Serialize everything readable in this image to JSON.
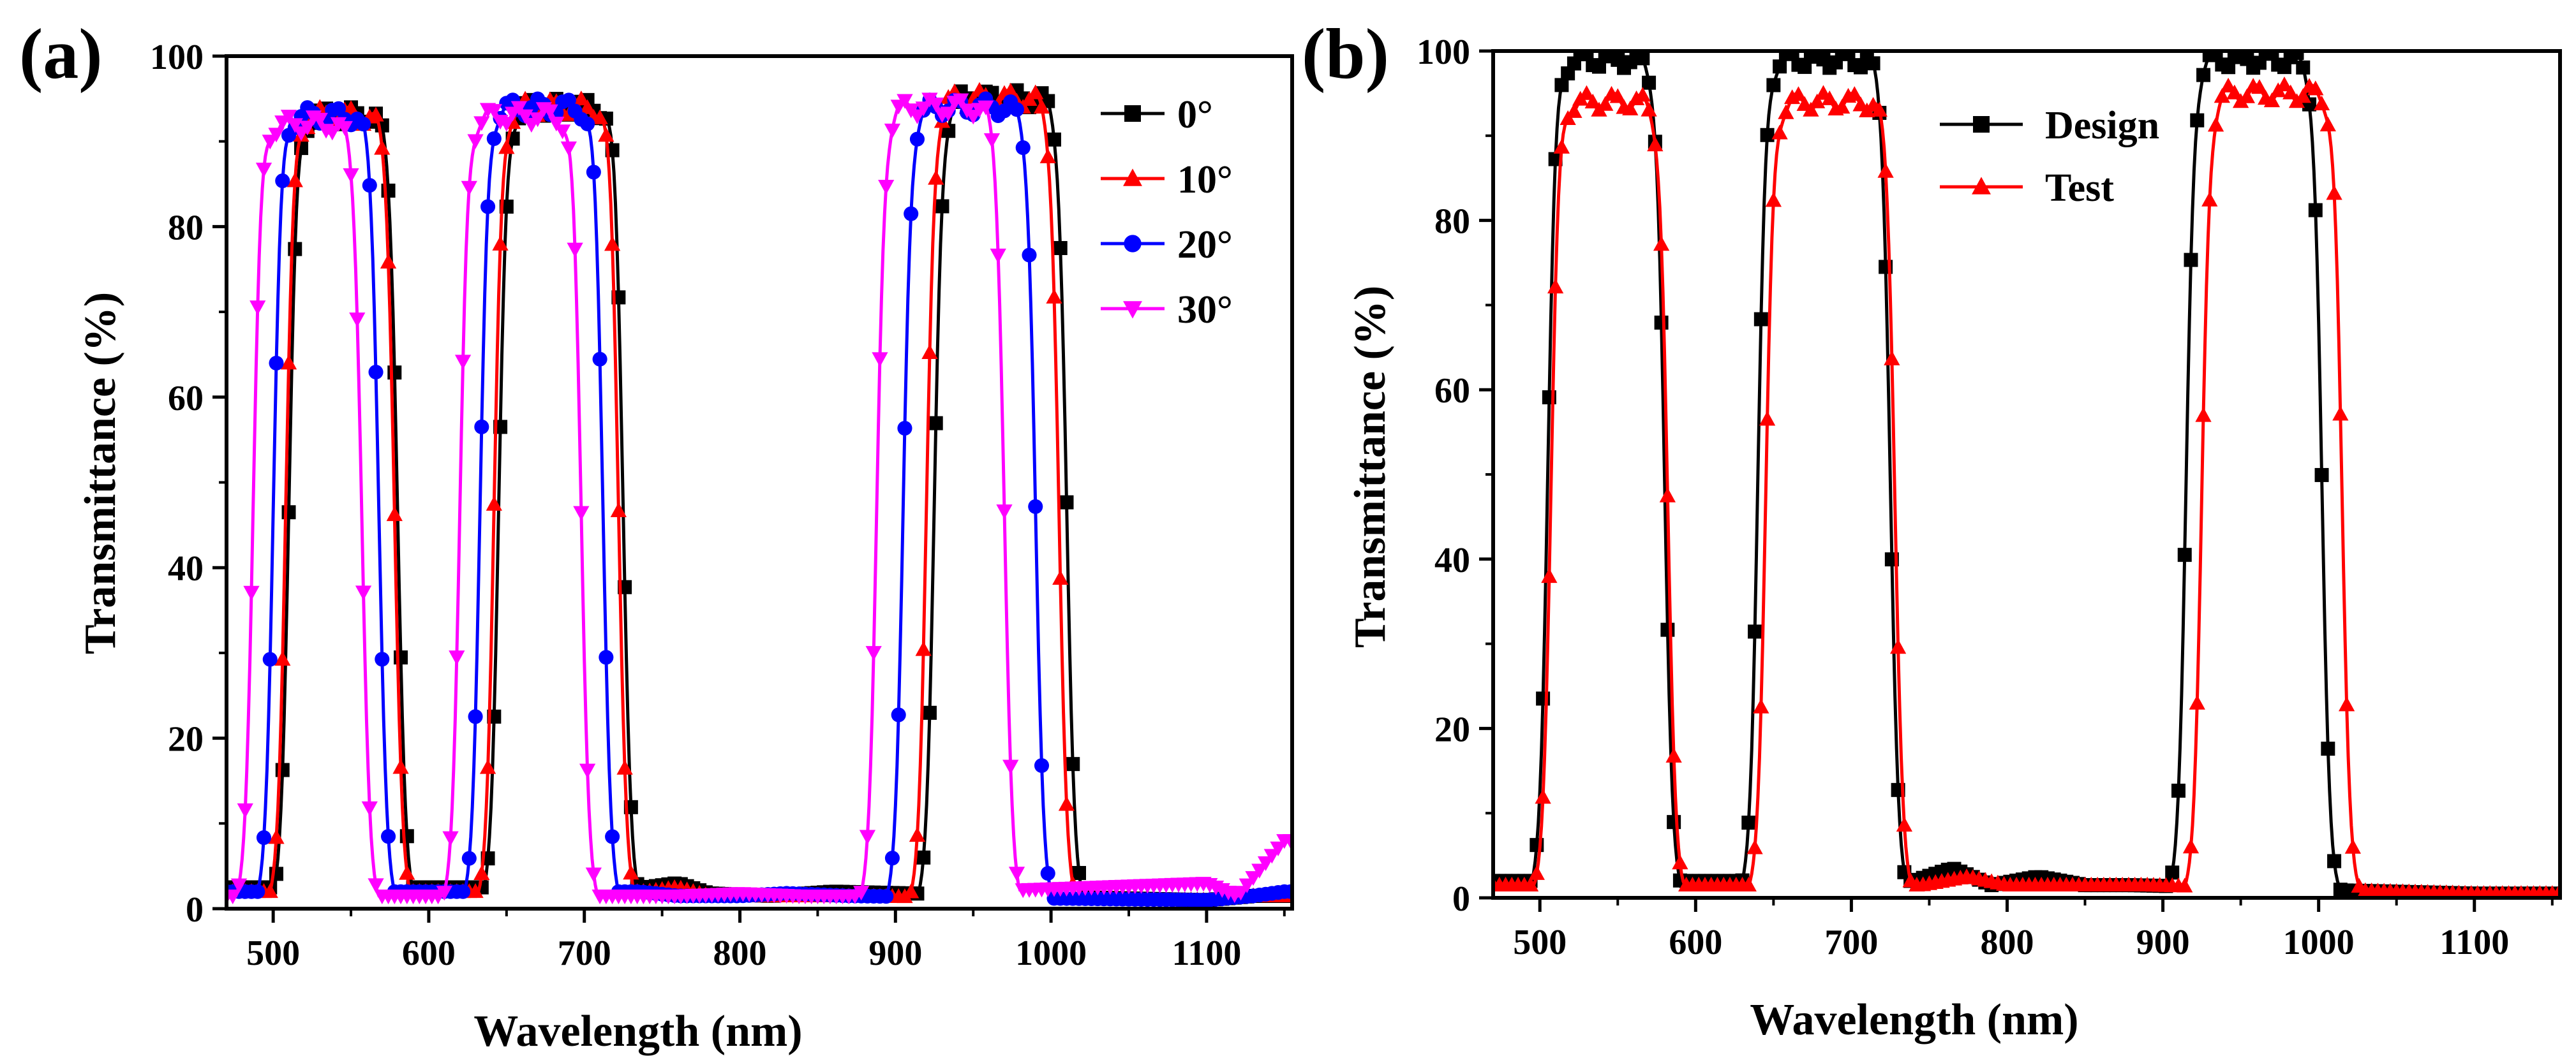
{
  "figure": {
    "panel_labels": [
      "(a)",
      "(b)"
    ]
  },
  "chart_data": [
    {
      "type": "line",
      "panel": "(a)",
      "xlabel": "Wavelength (nm)",
      "ylabel": "Transmittance (%)",
      "xlim": [
        470,
        1155
      ],
      "ylim": [
        0,
        100
      ],
      "xticks": [
        500,
        600,
        700,
        800,
        900,
        1000,
        1100
      ],
      "yticks": [
        0,
        20,
        40,
        60,
        80,
        100
      ],
      "legend_position": "top-right",
      "series": [
        {
          "name": "0°",
          "color": "#000000",
          "marker": "square",
          "bands": [
            {
              "lo": 510,
              "hi": 580,
              "peak": 93
            },
            {
              "lo": 645,
              "hi": 725,
              "peak": 94
            },
            {
              "lo": 925,
              "hi": 1010,
              "peak": 95
            }
          ],
          "baseline_points": [
            [
              740,
              2.5
            ],
            [
              760,
              3
            ],
            [
              780,
              1.8
            ],
            [
              820,
              1.5
            ],
            [
              860,
              2
            ],
            [
              1100,
              1
            ],
            [
              1130,
              1.5
            ],
            [
              1150,
              1.5
            ]
          ]
        },
        {
          "name": "10°",
          "color": "#ff0000",
          "marker": "triangle-up",
          "bands": [
            {
              "lo": 508,
              "hi": 578,
              "peak": 93
            },
            {
              "lo": 642,
              "hi": 722,
              "peak": 94
            },
            {
              "lo": 920,
              "hi": 1005,
              "peak": 95
            }
          ],
          "baseline_points": [
            [
              740,
              2
            ],
            [
              760,
              2.5
            ],
            [
              780,
              1.5
            ],
            [
              820,
              1.5
            ],
            [
              860,
              1.5
            ],
            [
              1100,
              1
            ],
            [
              1130,
              1.5
            ],
            [
              1150,
              1.5
            ]
          ]
        },
        {
          "name": "20°",
          "color": "#0000ff",
          "marker": "circle",
          "bands": [
            {
              "lo": 500,
              "hi": 568,
              "peak": 93
            },
            {
              "lo": 633,
              "hi": 712,
              "peak": 94
            },
            {
              "lo": 905,
              "hi": 990,
              "peak": 94
            }
          ],
          "baseline_points": [
            [
              735,
              2
            ],
            [
              760,
              1.5
            ],
            [
              800,
              1.5
            ],
            [
              830,
              1.8
            ],
            [
              870,
              1.5
            ],
            [
              1100,
              1
            ],
            [
              1130,
              1.5
            ],
            [
              1150,
              2
            ]
          ]
        },
        {
          "name": "30°",
          "color": "#ff00ff",
          "marker": "triangle-down",
          "bands": [
            {
              "lo": 487,
              "hi": 557,
              "peak": 92
            },
            {
              "lo": 620,
              "hi": 698,
              "peak": 93
            },
            {
              "lo": 888,
              "hi": 970,
              "peak": 94
            }
          ],
          "baseline_points": [
            [
              720,
              1.5
            ],
            [
              760,
              1.5
            ],
            [
              800,
              1.8
            ],
            [
              840,
              1.5
            ],
            [
              870,
              1.5
            ],
            [
              1100,
              3
            ],
            [
              1120,
              1.5
            ],
            [
              1150,
              8
            ]
          ]
        }
      ]
    },
    {
      "type": "line",
      "panel": "(b)",
      "xlabel": "Wavelength (nm)",
      "ylabel": "Transmittance (%)",
      "xlim": [
        470,
        1155
      ],
      "ylim": [
        0,
        100
      ],
      "xticks": [
        500,
        600,
        700,
        800,
        900,
        1000,
        1100
      ],
      "yticks": [
        0,
        20,
        40,
        60,
        80,
        100
      ],
      "legend_position": "top-center",
      "series": [
        {
          "name": "Design",
          "color": "#000000",
          "marker": "square",
          "bands": [
            {
              "lo": 505,
              "hi": 580,
              "peak": 99
            },
            {
              "lo": 640,
              "hi": 725,
              "peak": 99
            },
            {
              "lo": 915,
              "hi": 1002,
              "peak": 99
            }
          ],
          "baseline_points": [
            [
              740,
              2
            ],
            [
              765,
              3.5
            ],
            [
              790,
              1.5
            ],
            [
              820,
              2.5
            ],
            [
              850,
              1.5
            ],
            [
              880,
              1.5
            ],
            [
              1100,
              0.5
            ],
            [
              1150,
              0.5
            ]
          ]
        },
        {
          "name": "Test",
          "color": "#ff0000",
          "marker": "triangle-up",
          "bands": [
            {
              "lo": 507,
              "hi": 582,
              "peak": 94
            },
            {
              "lo": 645,
              "hi": 728,
              "peak": 94
            },
            {
              "lo": 925,
              "hi": 1015,
              "peak": 95
            }
          ],
          "baseline_points": [
            [
              745,
              1.5
            ],
            [
              775,
              2.5
            ],
            [
              800,
              1.5
            ],
            [
              830,
              1.5
            ],
            [
              860,
              1.5
            ],
            [
              890,
              1.5
            ],
            [
              1100,
              0.5
            ],
            [
              1150,
              0.5
            ]
          ]
        }
      ]
    }
  ]
}
